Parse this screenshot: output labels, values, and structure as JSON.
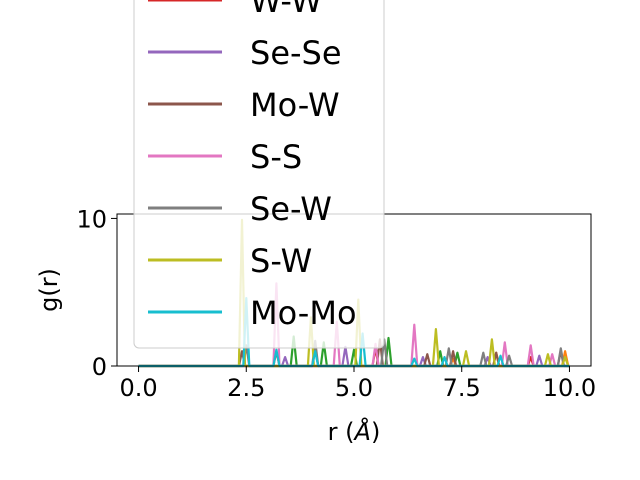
{
  "chart_data": {
    "type": "line",
    "xlabel": "r (Å)",
    "xlabel_parts": [
      "r (",
      "Å",
      ")"
    ],
    "ylabel": "g(r)",
    "xlim": [
      -0.5,
      10.5
    ],
    "ylim": [
      0,
      10.3
    ],
    "x_ticks": [
      0.0,
      2.5,
      5.0,
      7.5,
      10.0
    ],
    "x_tick_labels": [
      "0.0",
      "2.5",
      "5.0",
      "7.5",
      "10.0"
    ],
    "y_ticks": [
      0,
      10
    ],
    "y_tick_labels": [
      "0",
      "10"
    ],
    "grid": false,
    "legend_position": "upper-left (overflowing above plot)",
    "series": [
      {
        "name": "W-W",
        "color": "#d62728",
        "points": [
          [
            3.2,
            1.0
          ],
          [
            5.5,
            1.2
          ],
          [
            9.1,
            0.6
          ]
        ]
      },
      {
        "name": "Se-Se",
        "color": "#9467bd",
        "points": [
          [
            3.4,
            0.6
          ],
          [
            4.8,
            1.3
          ],
          [
            6.6,
            0.6
          ],
          [
            8.1,
            0.6
          ],
          [
            9.3,
            0.7
          ]
        ]
      },
      {
        "name": "Mo-W",
        "color": "#8c564b",
        "points": [
          [
            2.4,
            1.0
          ],
          [
            4.1,
            1.1
          ],
          [
            5.6,
            1.8
          ],
          [
            6.7,
            0.8
          ],
          [
            7.3,
            1.0
          ],
          [
            8.3,
            0.9
          ],
          [
            9.8,
            1.0
          ]
        ]
      },
      {
        "name": "S-S",
        "color": "#e377c2",
        "points": [
          [
            3.2,
            5.6
          ],
          [
            4.6,
            3.0
          ],
          [
            5.5,
            1.5
          ],
          [
            6.4,
            2.8
          ],
          [
            8.5,
            1.6
          ],
          [
            9.1,
            1.4
          ],
          [
            9.6,
            0.8
          ]
        ]
      },
      {
        "name": "Se-W",
        "color": "#7f7f7f",
        "points": [
          [
            2.5,
            1.4
          ],
          [
            4.1,
            1.7
          ],
          [
            5.7,
            1.8
          ],
          [
            7.2,
            1.2
          ],
          [
            8.0,
            0.9
          ],
          [
            8.6,
            0.7
          ],
          [
            9.8,
            1.2
          ]
        ]
      },
      {
        "name": "S-W",
        "color": "#bcbd22",
        "points": [
          [
            2.4,
            9.9
          ],
          [
            4.0,
            3.3
          ],
          [
            5.1,
            4.5
          ],
          [
            6.9,
            2.5
          ],
          [
            7.6,
            1.0
          ],
          [
            8.2,
            1.8
          ],
          [
            9.5,
            0.8
          ],
          [
            9.9,
            0.6
          ]
        ]
      },
      {
        "name": "Mo-Mo",
        "color": "#17becf",
        "points": [
          [
            2.5,
            4.6
          ],
          [
            3.2,
            1.1
          ],
          [
            4.1,
            1.0
          ],
          [
            5.2,
            2.2
          ],
          [
            6.4,
            0.5
          ],
          [
            7.1,
            0.6
          ],
          [
            8.4,
            0.7
          ]
        ]
      }
    ],
    "hidden_series": [
      {
        "color": "#2ca02c",
        "points": [
          [
            3.6,
            2.0
          ],
          [
            4.3,
            1.6
          ],
          [
            5.0,
            1.1
          ],
          [
            5.8,
            1.9
          ],
          [
            7.0,
            1.0
          ],
          [
            7.4,
            0.9
          ]
        ]
      },
      {
        "color": "#ff7f0e",
        "points": [
          [
            7.3,
            0.5
          ],
          [
            8.3,
            0.9
          ],
          [
            9.9,
            1.0
          ]
        ]
      }
    ]
  }
}
